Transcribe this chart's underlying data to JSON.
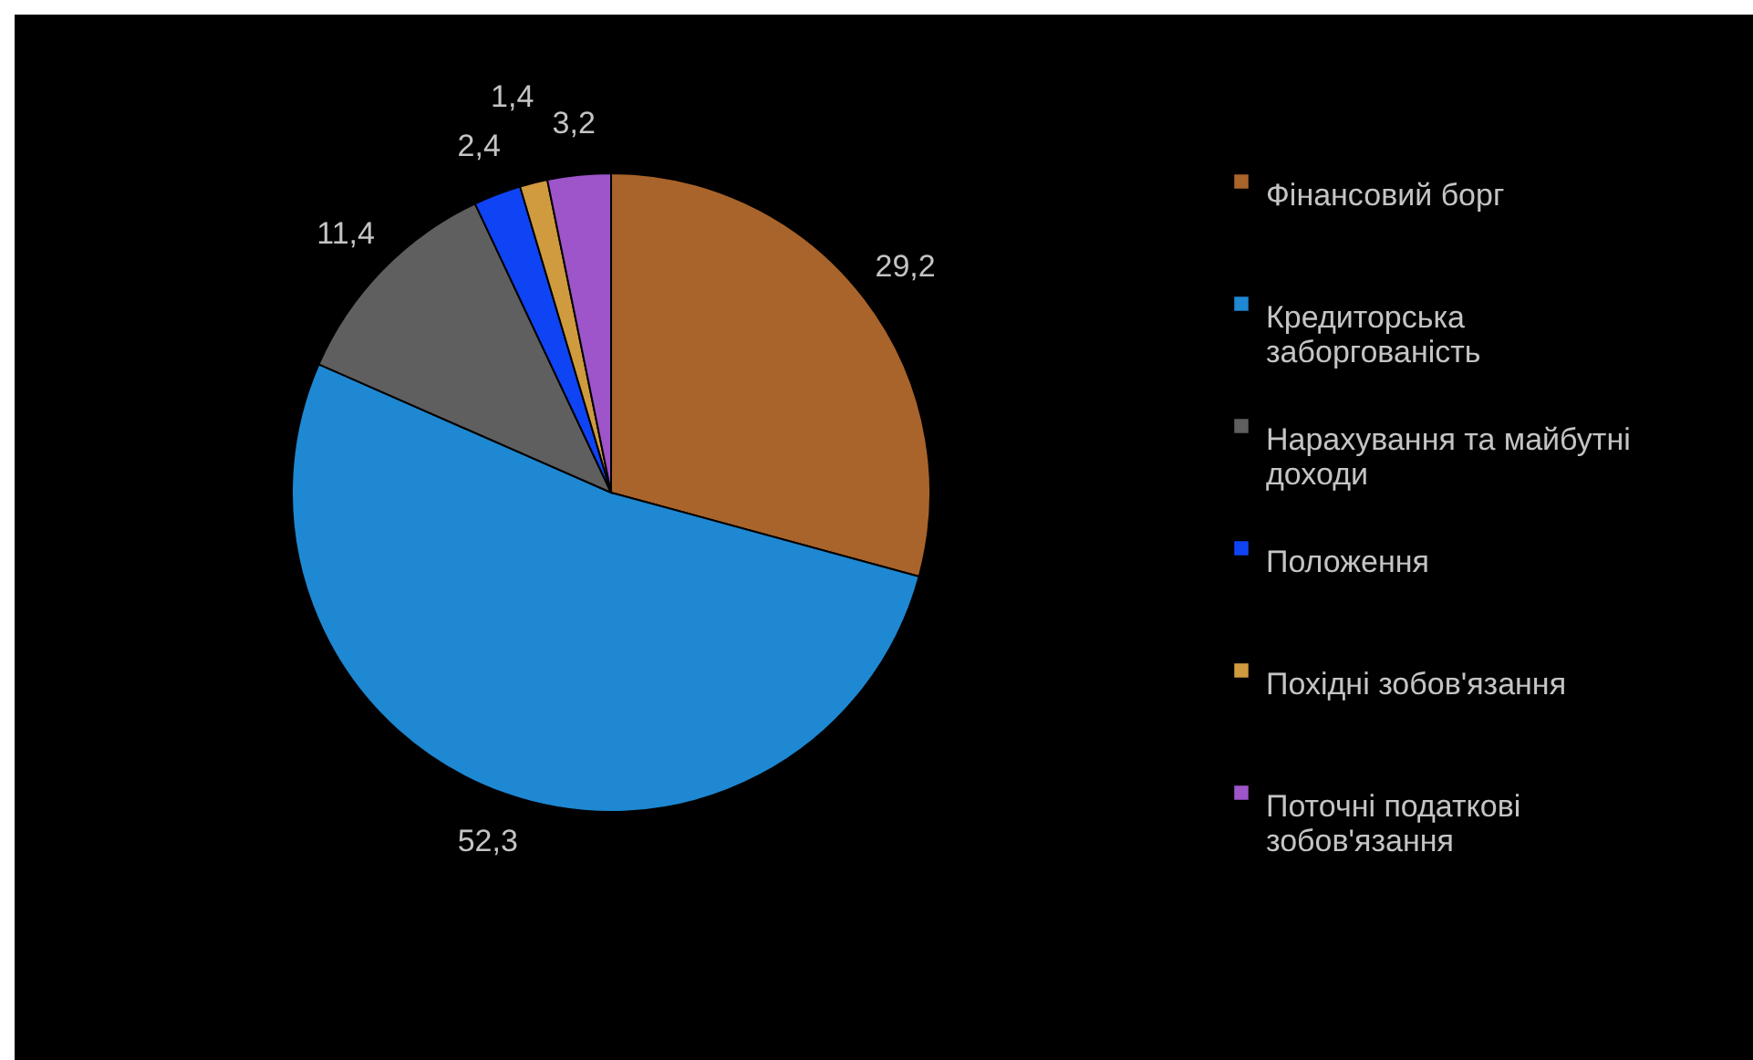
{
  "chart_data": {
    "type": "pie",
    "categories": [
      "Фінансовий борг",
      "Кредиторська заборгованість",
      "Нарахування та майбутні доходи",
      "Положення",
      "Похідні зобов'язання",
      "Поточні податкові зобов'язання"
    ],
    "values": [
      29.2,
      52.3,
      11.4,
      2.4,
      1.4,
      3.2
    ],
    "colors": [
      "#a9642b",
      "#1e88d2",
      "#5f5f5f",
      "#0f44f5",
      "#d09a3e",
      "#9d55c9"
    ],
    "value_labels": [
      "29,2",
      "52,3",
      "11,4",
      "2,4",
      "1,4",
      "3,2"
    ],
    "legend": "right"
  }
}
